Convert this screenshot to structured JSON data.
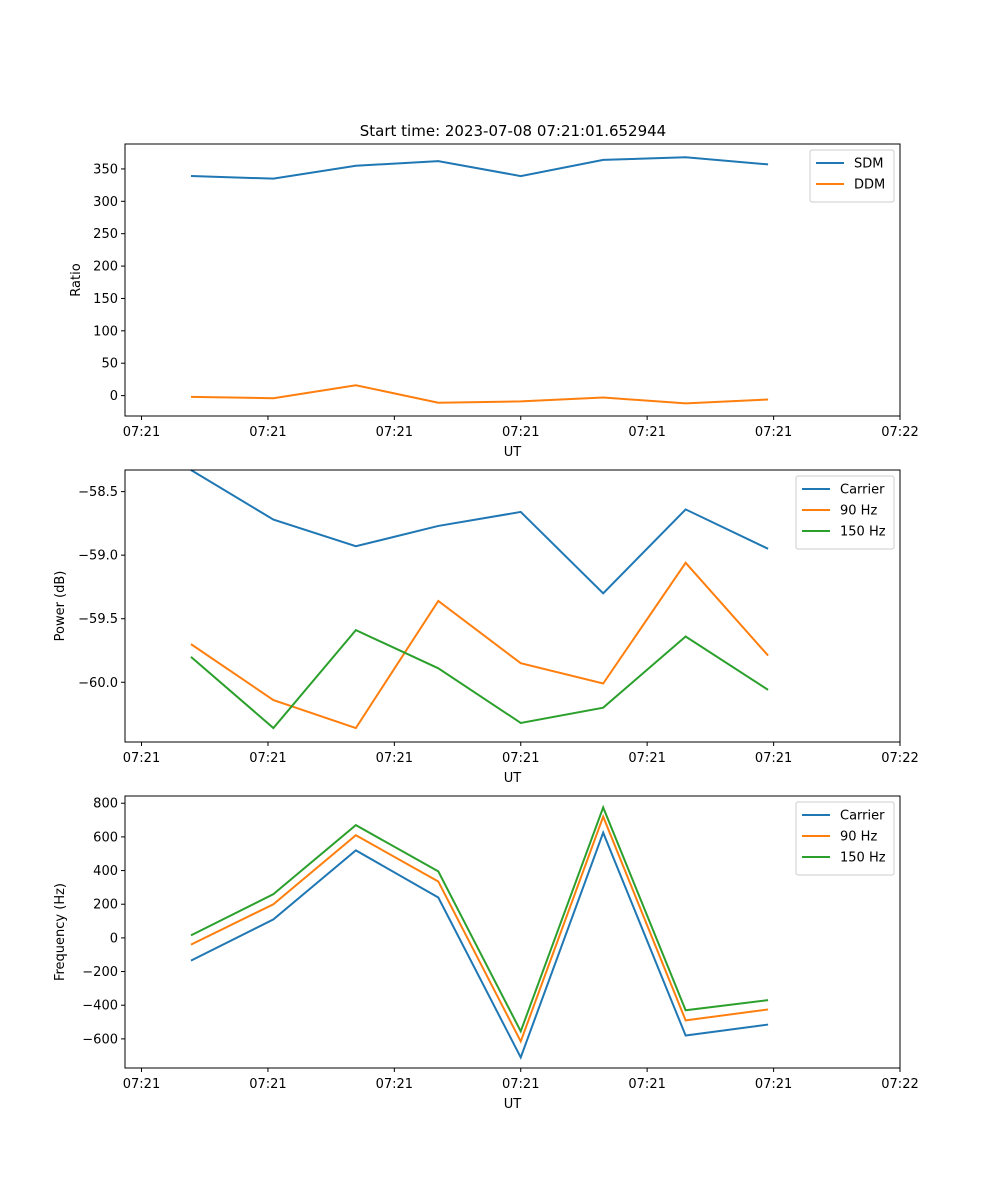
{
  "figure_title": "Start time: 2023-07-08 07:21:01.652944",
  "colors": {
    "blue": "#1f77b4",
    "orange": "#ff7f0e",
    "green": "#2ca02c"
  },
  "chart_data": [
    {
      "type": "line",
      "title": "Start time: 2023-07-08 07:21:01.652944",
      "xlabel": "UT",
      "ylabel": "Ratio",
      "x": [
        1,
        2,
        3,
        4,
        5,
        6,
        7,
        8
      ],
      "xlim": [
        0.2,
        9.6
      ],
      "xticks": [
        0.4,
        1.934,
        3.467,
        5.0,
        6.533,
        8.067,
        9.6
      ],
      "xtick_labels": [
        "07:21",
        "07:21",
        "07:21",
        "07:21",
        "07:21",
        "07:21",
        "07:22"
      ],
      "ylim": [
        -31.5,
        388.5
      ],
      "yticks": [
        0,
        50,
        100,
        150,
        200,
        250,
        300,
        350
      ],
      "ytick_labels": [
        "0",
        "50",
        "100",
        "150",
        "200",
        "250",
        "300",
        "350"
      ],
      "legend_position": "top-right",
      "series": [
        {
          "name": "SDM",
          "color": "#1f77b4",
          "values": [
            339,
            335,
            355,
            362,
            339,
            364,
            368,
            357
          ]
        },
        {
          "name": "DDM",
          "color": "#ff7f0e",
          "values": [
            -2,
            -4,
            16,
            -11,
            -9,
            -3,
            -12,
            -6
          ]
        }
      ]
    },
    {
      "type": "line",
      "title": "",
      "xlabel": "UT",
      "ylabel": "Power (dB)",
      "x": [
        1,
        2,
        3,
        4,
        5,
        6,
        7,
        8
      ],
      "xlim": [
        0.2,
        9.6
      ],
      "xticks": [
        0.4,
        1.934,
        3.467,
        5.0,
        6.533,
        8.067,
        9.6
      ],
      "xtick_labels": [
        "07:21",
        "07:21",
        "07:21",
        "07:21",
        "07:21",
        "07:21",
        "07:22"
      ],
      "ylim": [
        -60.47,
        -58.33
      ],
      "yticks": [
        -60.0,
        -59.5,
        -59.0,
        -58.5
      ],
      "ytick_labels": [
        "−60.0",
        "−59.5",
        "−59.0",
        "−58.5"
      ],
      "legend_position": "top-right",
      "series": [
        {
          "name": "Carrier",
          "color": "#1f77b4",
          "values": [
            -58.33,
            -58.72,
            -58.93,
            -58.77,
            -58.66,
            -59.3,
            -58.64,
            -58.95
          ]
        },
        {
          "name": "90 Hz",
          "color": "#ff7f0e",
          "values": [
            -59.7,
            -60.14,
            -60.36,
            -59.36,
            -59.85,
            -60.01,
            -59.06,
            -59.79
          ]
        },
        {
          "name": "150 Hz",
          "color": "#2ca02c",
          "values": [
            -59.8,
            -60.36,
            -59.59,
            -59.89,
            -60.32,
            -60.2,
            -59.64,
            -60.06
          ]
        }
      ]
    },
    {
      "type": "line",
      "title": "",
      "xlabel": "UT",
      "ylabel": "Frequency (Hz)",
      "x": [
        1,
        2,
        3,
        4,
        5,
        6,
        7,
        8
      ],
      "xlim": [
        0.2,
        9.6
      ],
      "xticks": [
        0.4,
        1.934,
        3.467,
        5.0,
        6.533,
        8.067,
        9.6
      ],
      "xtick_labels": [
        "07:21",
        "07:21",
        "07:21",
        "07:21",
        "07:21",
        "07:21",
        "07:22"
      ],
      "ylim": [
        -773,
        843
      ],
      "yticks": [
        -600,
        -400,
        -200,
        0,
        200,
        400,
        600,
        800
      ],
      "ytick_labels": [
        "−600",
        "−400",
        "−200",
        "0",
        "200",
        "400",
        "600",
        "800"
      ],
      "legend_position": "top-right",
      "series": [
        {
          "name": "Carrier",
          "color": "#1f77b4",
          "values": [
            -135,
            110,
            520,
            240,
            -710,
            625,
            -580,
            -515
          ]
        },
        {
          "name": "90 Hz",
          "color": "#ff7f0e",
          "values": [
            -40,
            200,
            610,
            335,
            -615,
            720,
            -490,
            -425
          ]
        },
        {
          "name": "150 Hz",
          "color": "#2ca02c",
          "values": [
            15,
            260,
            670,
            395,
            -555,
            775,
            -430,
            -370
          ]
        }
      ]
    }
  ]
}
